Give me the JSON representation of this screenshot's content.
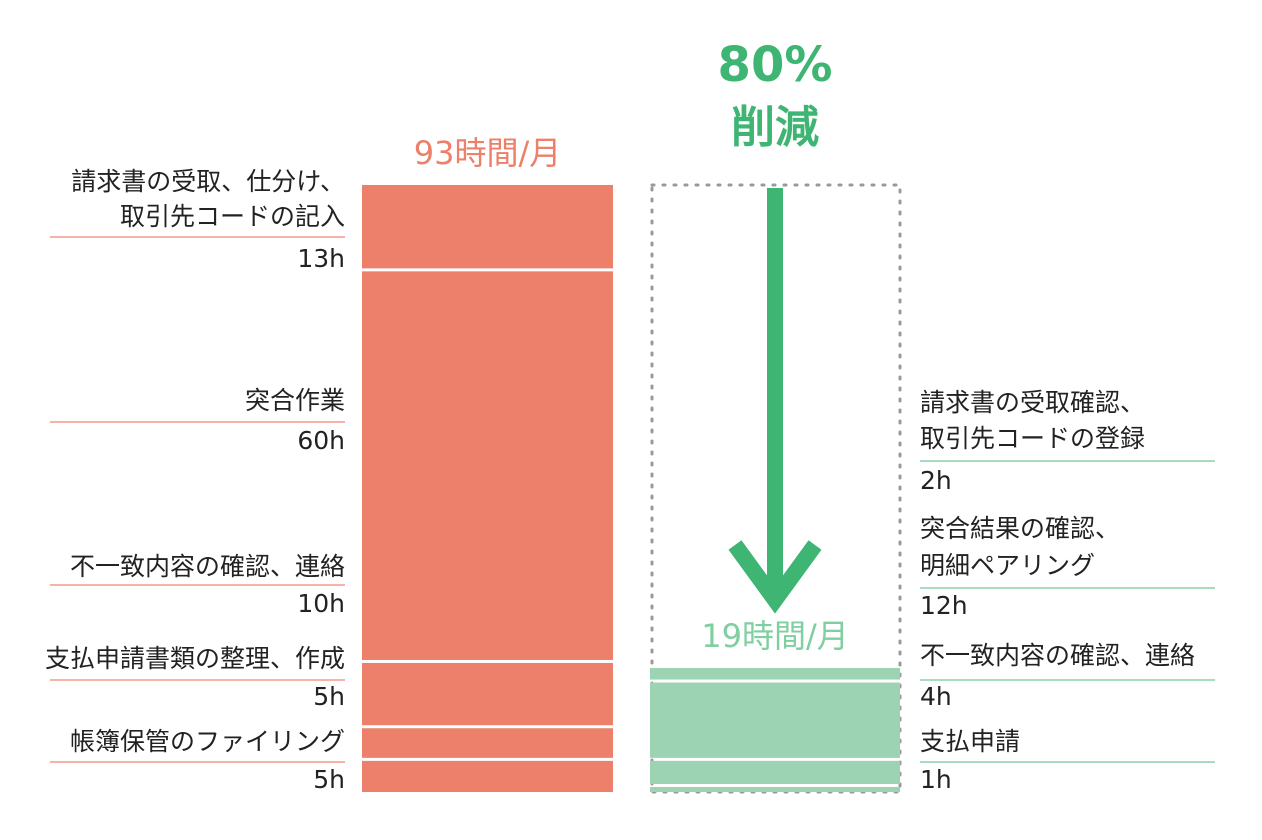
{
  "chart_data": {
    "type": "stacked-comparison",
    "reduction_label": "80%",
    "reduction_text": "削減",
    "bars": [
      {
        "total": 93,
        "total_label": "93時間/月",
        "color": "#ec806a",
        "line_color": "#f3b3a5",
        "label_color": "#ec806a",
        "labels": [
          [
            "請求書の受取、仕分け、",
            "取引先コードの記入"
          ],
          [
            "突合作業"
          ],
          [
            "不一致内容の確認、連絡"
          ],
          [
            "支払申請書類の整理、作成"
          ],
          [
            "帳簿保管のファイリング"
          ]
        ],
        "values": [
          13,
          60,
          10,
          5,
          5
        ],
        "value_labels": [
          "13h",
          "60h",
          "10h",
          "5h",
          "5h"
        ]
      },
      {
        "total": 19,
        "total_label": "19時間/月",
        "color": "#9bd3b3",
        "line_color": "#a8dcc0",
        "label_color": "#7fcfa1",
        "labels": [
          [
            "請求書の受取確認、",
            "取引先コードの登録"
          ],
          [
            "突合結果の確認、",
            "明細ペアリング"
          ],
          [
            "不一致内容の確認、連絡"
          ],
          [
            "支払申請"
          ]
        ],
        "values": [
          2,
          12,
          4,
          1
        ],
        "value_labels": [
          "2h",
          "12h",
          "4h",
          "1h"
        ]
      }
    ],
    "arrow_color": "#3fb573"
  }
}
